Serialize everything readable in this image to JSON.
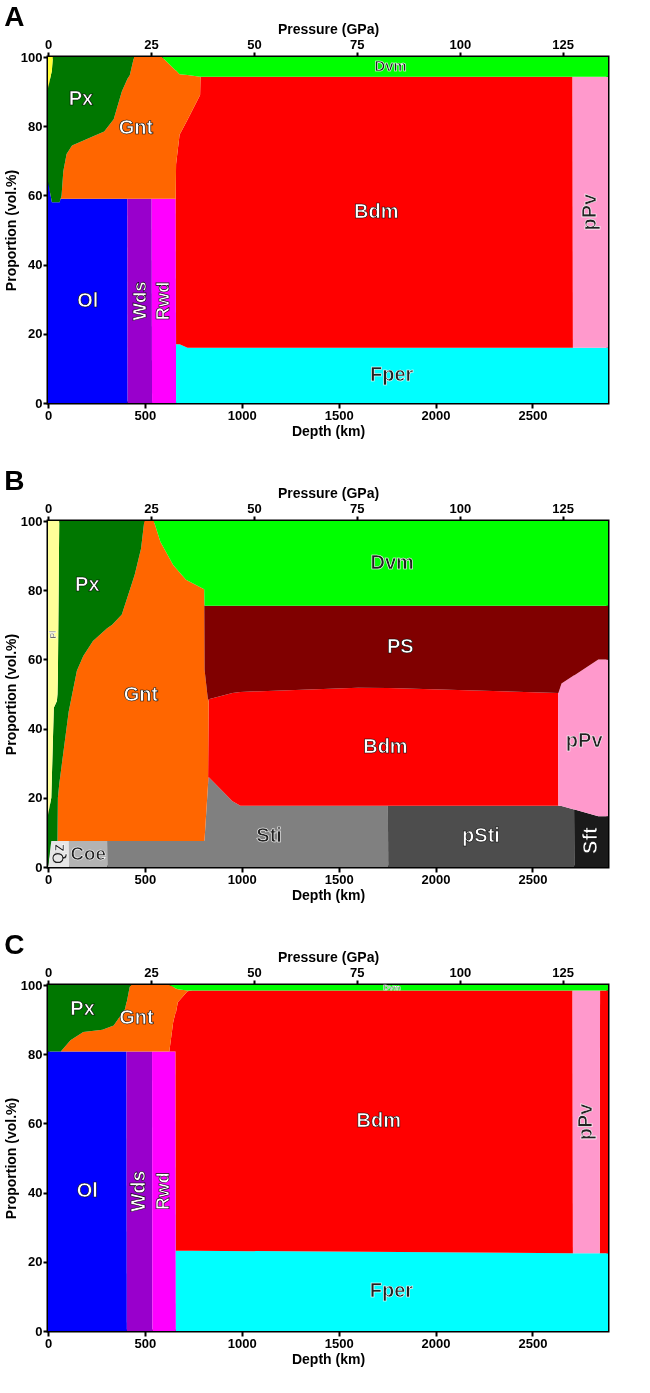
{
  "chart_data": [
    {
      "type": "area",
      "title": "A",
      "stacked": true,
      "xlabel": "Depth (km)",
      "ylabel": "Proportion (vol.%)",
      "x2label": "Pressure (GPa)",
      "xlim": [
        0,
        2890
      ],
      "xticks": [
        0,
        500,
        1000,
        1500,
        2000,
        2500
      ],
      "ylim": [
        0,
        100
      ],
      "yticks": [
        0,
        20,
        40,
        60,
        80,
        100
      ],
      "x2lim": [
        0,
        136
      ],
      "x2ticks": [
        0,
        25,
        50,
        75,
        100,
        125
      ],
      "grid": false,
      "x": [
        0,
        20,
        25,
        60,
        65,
        70,
        79,
        96,
        124,
        290,
        339,
        381,
        409,
        411,
        422,
        444,
        535,
        537,
        588,
        659,
        661,
        679,
        720,
        785,
        787,
        2707,
        2709,
        2890
      ],
      "series": [
        {
          "name": "Ol",
          "color": "#0000ff",
          "values": [
            64,
            58,
            58,
            58,
            59,
            59,
            59,
            59,
            59,
            59,
            59,
            59,
            59,
            0,
            null,
            null,
            null,
            null,
            null,
            null,
            null,
            null,
            null,
            null,
            null,
            null,
            null,
            null
          ]
        },
        {
          "name": "Wds",
          "color": "#9900cc",
          "values": [
            null,
            null,
            null,
            null,
            null,
            null,
            null,
            null,
            null,
            null,
            null,
            null,
            0,
            59,
            59,
            59,
            59,
            0,
            null,
            null,
            null,
            null,
            null,
            null,
            null,
            null,
            null,
            null
          ]
        },
        {
          "name": "Rwd",
          "color": "#ff00ff",
          "values": [
            null,
            null,
            null,
            null,
            null,
            null,
            null,
            null,
            null,
            null,
            null,
            null,
            null,
            null,
            null,
            null,
            0,
            59,
            59,
            59,
            0,
            null,
            null,
            null,
            null,
            null,
            null,
            null
          ]
        },
        {
          "name": "Fper",
          "color": "#00ffff",
          "values": [
            null,
            null,
            null,
            null,
            null,
            null,
            null,
            null,
            null,
            null,
            null,
            null,
            null,
            null,
            null,
            null,
            null,
            null,
            null,
            0,
            17,
            17,
            16,
            16,
            16,
            16,
            16,
            16
          ]
        },
        {
          "name": "Bdm",
          "color": "#ff0000",
          "values": [
            null,
            null,
            null,
            null,
            null,
            null,
            null,
            null,
            null,
            null,
            null,
            null,
            null,
            null,
            null,
            null,
            null,
            null,
            null,
            0,
            52,
            60.5,
            65.9,
            73,
            78.3,
            78.3,
            0,
            null
          ]
        },
        {
          "name": "pPv",
          "color": "#ff99cc",
          "values": [
            null,
            null,
            null,
            null,
            null,
            null,
            null,
            null,
            null,
            null,
            null,
            null,
            null,
            null,
            null,
            null,
            null,
            null,
            null,
            null,
            null,
            null,
            null,
            null,
            null,
            0,
            78.3,
            78.3
          ]
        },
        {
          "name": "Gnt",
          "color": "#ff6600",
          "values": [
            null,
            null,
            null,
            null,
            0,
            1,
            8,
            13,
            15.4,
            19.5,
            23,
            31,
            34.6,
            34.8,
            35.7,
            41,
            41,
            41,
            41,
            37.1,
            27.1,
            17.5,
            12.9,
            5.3,
            0,
            null,
            null,
            null
          ]
        },
        {
          "name": "Px",
          "color": "#007700",
          "values": [
            27,
            38,
            42,
            42,
            41,
            40,
            33,
            28,
            25.6,
            21.5,
            18,
            10,
            6.4,
            6.2,
            5.3,
            0,
            null,
            null,
            null,
            null,
            null,
            null,
            null,
            null,
            null,
            null,
            null,
            null
          ]
        },
        {
          "color": "#ffff33",
          "values": [
            9,
            4,
            0,
            null,
            null,
            null,
            null,
            null,
            null,
            null,
            null,
            null,
            null,
            null,
            null,
            null,
            null,
            null,
            null,
            null,
            null,
            null,
            null,
            null,
            null,
            null,
            null,
            null
          ]
        },
        {
          "name": "Dvm",
          "color": "#00ff00",
          "values": [
            null,
            null,
            null,
            null,
            null,
            null,
            null,
            null,
            null,
            null,
            null,
            null,
            null,
            null,
            null,
            null,
            null,
            null,
            0,
            3.9,
            3.9,
            5,
            5.2,
            5.7,
            5.7,
            5.7,
            5.7,
            5.7
          ]
        }
      ]
    },
    {
      "type": "area",
      "title": "B",
      "stacked": true,
      "xlabel": "Depth (km)",
      "ylabel": "Proportion (vol.%)",
      "x2label": "Pressure (GPa)",
      "xlim": [
        0,
        2890
      ],
      "xticks": [
        0,
        500,
        1000,
        1500,
        2000,
        2500
      ],
      "ylim": [
        0,
        100
      ],
      "yticks": [
        0,
        20,
        40,
        60,
        80,
        100
      ],
      "x2lim": [
        0,
        136
      ],
      "x2ticks": [
        0,
        25,
        50,
        75,
        100,
        125
      ],
      "grid": false,
      "x": [
        0,
        17,
        30,
        46,
        49,
        51,
        58,
        103,
        107,
        109,
        149,
        182,
        232,
        305,
        307,
        331,
        381,
        447,
        480,
        497,
        546,
        580,
        646,
        712,
        806,
        808,
        826,
        829,
        952,
        993,
        1600,
        1754,
        1756,
        2632,
        2634,
        2650,
        2715,
        2717,
        2840,
        2890
      ],
      "series": [
        {
          "name": "Qz",
          "color": "#e6e6e6",
          "values": [
            0,
            7.5,
            7.5,
            7.5,
            7.5,
            7.5,
            7.5,
            7.5,
            7.5,
            0,
            null,
            null,
            null,
            null,
            null,
            null,
            null,
            null,
            null,
            null,
            null,
            null,
            null,
            null,
            null,
            null,
            null,
            null,
            null,
            null,
            null,
            null,
            null,
            null,
            null,
            null,
            null,
            null,
            null,
            null
          ]
        },
        {
          "name": "Coe",
          "color": "#b3b3b3",
          "values": [
            null,
            null,
            null,
            null,
            null,
            null,
            null,
            null,
            0,
            7.5,
            7.5,
            7.5,
            7.5,
            7.5,
            0,
            null,
            null,
            null,
            null,
            null,
            null,
            null,
            null,
            null,
            null,
            null,
            null,
            null,
            null,
            null,
            null,
            null,
            null,
            null,
            null,
            null,
            null,
            null,
            null,
            null
          ]
        },
        {
          "name": "Sti",
          "color": "#808080",
          "values": [
            null,
            null,
            null,
            null,
            null,
            null,
            null,
            null,
            null,
            null,
            null,
            null,
            null,
            0,
            7.5,
            7.5,
            7.5,
            7.5,
            7.5,
            7.5,
            7.5,
            7.5,
            7.5,
            7.5,
            7.5,
            8,
            24,
            26,
            19,
            17.7,
            17.7,
            17.7,
            0,
            null,
            null,
            null,
            null,
            null,
            null,
            null
          ]
        },
        {
          "name": "pSti",
          "color": "#4d4d4d",
          "values": [
            null,
            null,
            null,
            null,
            null,
            null,
            null,
            null,
            null,
            null,
            null,
            null,
            null,
            null,
            null,
            null,
            null,
            null,
            null,
            null,
            null,
            null,
            null,
            null,
            null,
            null,
            null,
            null,
            null,
            null,
            null,
            0,
            17.7,
            17.7,
            17.7,
            17.6,
            16.6,
            0,
            null,
            null
          ]
        },
        {
          "name": "Sft",
          "color": "#1a1a1a",
          "values": [
            null,
            null,
            null,
            null,
            null,
            null,
            null,
            null,
            null,
            null,
            null,
            null,
            null,
            null,
            null,
            null,
            null,
            null,
            null,
            null,
            null,
            null,
            null,
            null,
            null,
            null,
            null,
            null,
            null,
            null,
            null,
            null,
            null,
            null,
            null,
            null,
            0,
            16.6,
            14.7,
            14.7
          ]
        },
        {
          "name": "Bdm",
          "color": "#ff0000",
          "values": [
            null,
            null,
            null,
            null,
            null,
            null,
            null,
            null,
            null,
            null,
            null,
            null,
            null,
            null,
            null,
            null,
            null,
            null,
            null,
            null,
            null,
            null,
            null,
            null,
            null,
            null,
            0,
            22.5,
            31.3,
            32.9,
            34.1,
            34,
            34,
            32.6,
            0,
            null,
            null,
            null,
            null,
            null
          ]
        },
        {
          "name": "pPv",
          "color": "#ff99cc",
          "values": [
            null,
            null,
            null,
            null,
            null,
            null,
            null,
            null,
            null,
            null,
            null,
            null,
            null,
            null,
            null,
            null,
            null,
            null,
            null,
            null,
            null,
            null,
            null,
            null,
            null,
            null,
            null,
            null,
            null,
            null,
            null,
            null,
            null,
            0,
            32.6,
            35.4,
            38.8,
            38.8,
            45.3,
            45.3
          ]
        },
        {
          "name": "Gnt",
          "color": "#ff6600",
          "values": [
            null,
            null,
            null,
            null,
            0,
            12.5,
            16.5,
            35.8,
            37.5,
            38,
            49.2,
            53.5,
            57.8,
            61.5,
            61.6,
            62.5,
            65.5,
            76.9,
            84.5,
            92.5,
            92.5,
            86.5,
            79.8,
            75.5,
            72.8,
            49,
            24,
            0,
            null,
            null,
            null,
            null,
            null,
            null,
            null,
            null,
            null,
            null,
            null,
            null
          ]
        },
        {
          "name": "PS",
          "color": "#800000",
          "values": [
            null,
            null,
            null,
            null,
            null,
            null,
            null,
            null,
            null,
            null,
            null,
            null,
            null,
            null,
            null,
            null,
            null,
            null,
            null,
            null,
            null,
            null,
            null,
            null,
            0,
            18.5,
            27.5,
            27,
            25.2,
            24.9,
            23.7,
            23.8,
            23.8,
            25.2,
            25.2,
            22.5,
            20.1,
            20.1,
            15.5,
            15.5
          ]
        },
        {
          "name": "Px",
          "color": "#007700",
          "values": [
            15,
            12.5,
            38.5,
            40.5,
            42.5,
            35,
            76,
            56.7,
            55,
            54.5,
            43.3,
            39,
            34.7,
            31,
            30.9,
            30,
            27,
            15.6,
            8,
            0,
            null,
            null,
            null,
            null,
            null,
            null,
            null,
            null,
            null,
            null,
            null,
            null,
            null,
            null,
            null,
            null,
            null,
            null,
            null,
            null
          ]
        },
        {
          "name": "Pl",
          "color": "#ffff99",
          "values": [
            85,
            80,
            54,
            52,
            50,
            45,
            0,
            null,
            null,
            null,
            null,
            null,
            null,
            null,
            null,
            null,
            null,
            null,
            null,
            null,
            null,
            null,
            null,
            null,
            null,
            null,
            null,
            null,
            null,
            null,
            null,
            null,
            null,
            null,
            null,
            null,
            null,
            null,
            null,
            null
          ]
        },
        {
          "name": "Dvm",
          "color": "#00ff00",
          "values": [
            null,
            null,
            null,
            null,
            null,
            null,
            null,
            null,
            null,
            null,
            null,
            null,
            null,
            null,
            null,
            null,
            null,
            null,
            null,
            null,
            0,
            6,
            12.7,
            17,
            19.7,
            24.5,
            24.5,
            24.5,
            24.5,
            24.5,
            24.5,
            24.5,
            24.5,
            24.5,
            24.5,
            24.5,
            24.5,
            24.5,
            24.5,
            24.5
          ]
        }
      ]
    },
    {
      "type": "area",
      "title": "C",
      "stacked": true,
      "xlabel": "Depth (km)",
      "ylabel": "Proportion (vol.%)",
      "x2label": "Pressure (GPa)",
      "xlim": [
        0,
        2890
      ],
      "xticks": [
        0,
        500,
        1000,
        1500,
        2000,
        2500
      ],
      "ylim": [
        0,
        100
      ],
      "yticks": [
        0,
        20,
        40,
        60,
        80,
        100
      ],
      "x2lim": [
        0,
        136
      ],
      "x2ticks": [
        0,
        25,
        50,
        75,
        100,
        125
      ],
      "grid": false,
      "x": [
        0,
        64,
        66,
        116,
        182,
        281,
        339,
        397,
        405,
        407,
        422,
        430,
        537,
        539,
        626,
        646,
        658,
        660,
        670,
        720,
        745,
        2707,
        2709,
        2847,
        2849,
        2890
      ],
      "series": [
        {
          "name": "Ol",
          "color": "#0000ff",
          "values": [
            80.8,
            80.8,
            80.8,
            80.8,
            80.8,
            80.8,
            80.8,
            80.8,
            80.8,
            0,
            null,
            null,
            null,
            null,
            null,
            null,
            null,
            null,
            null,
            null,
            null,
            null,
            null,
            null,
            null,
            null
          ]
        },
        {
          "name": "Wds",
          "color": "#9900cc",
          "values": [
            null,
            null,
            null,
            null,
            null,
            null,
            null,
            null,
            0,
            80.8,
            80.8,
            80.8,
            80.8,
            0,
            null,
            null,
            null,
            null,
            null,
            null,
            null,
            null,
            null,
            null,
            null,
            null
          ]
        },
        {
          "name": "Rwd",
          "color": "#ff00ff",
          "values": [
            null,
            null,
            null,
            null,
            null,
            null,
            null,
            null,
            null,
            null,
            null,
            null,
            0,
            80.8,
            80.8,
            80.8,
            80.8,
            0,
            null,
            null,
            null,
            null,
            null,
            null,
            null,
            null
          ]
        },
        {
          "name": "Fper",
          "color": "#00ffff",
          "values": [
            null,
            null,
            null,
            null,
            null,
            null,
            null,
            null,
            null,
            null,
            null,
            null,
            null,
            null,
            null,
            null,
            0,
            23.2,
            23.2,
            23.2,
            23.2,
            22.5,
            22.5,
            22.5,
            22.5,
            22.5
          ]
        },
        {
          "name": "Bdm",
          "color": "#ff0000",
          "values": [
            null,
            null,
            null,
            null,
            null,
            null,
            null,
            null,
            null,
            null,
            null,
            null,
            null,
            null,
            0,
            8.4,
            11.2,
            68.8,
            71.8,
            75,
            75.2,
            75.9,
            0,
            0,
            75.9,
            75.9
          ]
        },
        {
          "name": "pPv",
          "color": "#ff99cc",
          "values": [
            null,
            null,
            null,
            null,
            null,
            null,
            null,
            null,
            null,
            null,
            null,
            null,
            null,
            null,
            null,
            null,
            null,
            null,
            null,
            null,
            null,
            0,
            75.9,
            75.9,
            0,
            null
          ]
        },
        {
          "name": "Gnt",
          "color": "#ff6600",
          "values": [
            null,
            null,
            0,
            3.2,
            5.6,
            6.3,
            7.5,
            12.2,
            14.2,
            14.4,
            18.8,
            19.2,
            19.2,
            19.2,
            19.2,
            10.3,
            7,
            7,
            3.8,
            0.2,
            0,
            null,
            null,
            null,
            null,
            null
          ]
        },
        {
          "name": "Px",
          "color": "#007700",
          "values": [
            19.2,
            19.2,
            19.2,
            16,
            13.6,
            12.9,
            11.7,
            7,
            5,
            4.8,
            0.4,
            0,
            null,
            null,
            null,
            null,
            null,
            null,
            null,
            null,
            null,
            null,
            null,
            null,
            null,
            null
          ]
        },
        {
          "name": "Dvm",
          "color": "#00ff00",
          "values": [
            null,
            null,
            null,
            null,
            null,
            null,
            null,
            null,
            null,
            null,
            null,
            null,
            null,
            null,
            0,
            0.5,
            1,
            1,
            1.2,
            1.6,
            1.6,
            1.6,
            1.6,
            1.6,
            1.6,
            1.6
          ]
        }
      ]
    }
  ]
}
